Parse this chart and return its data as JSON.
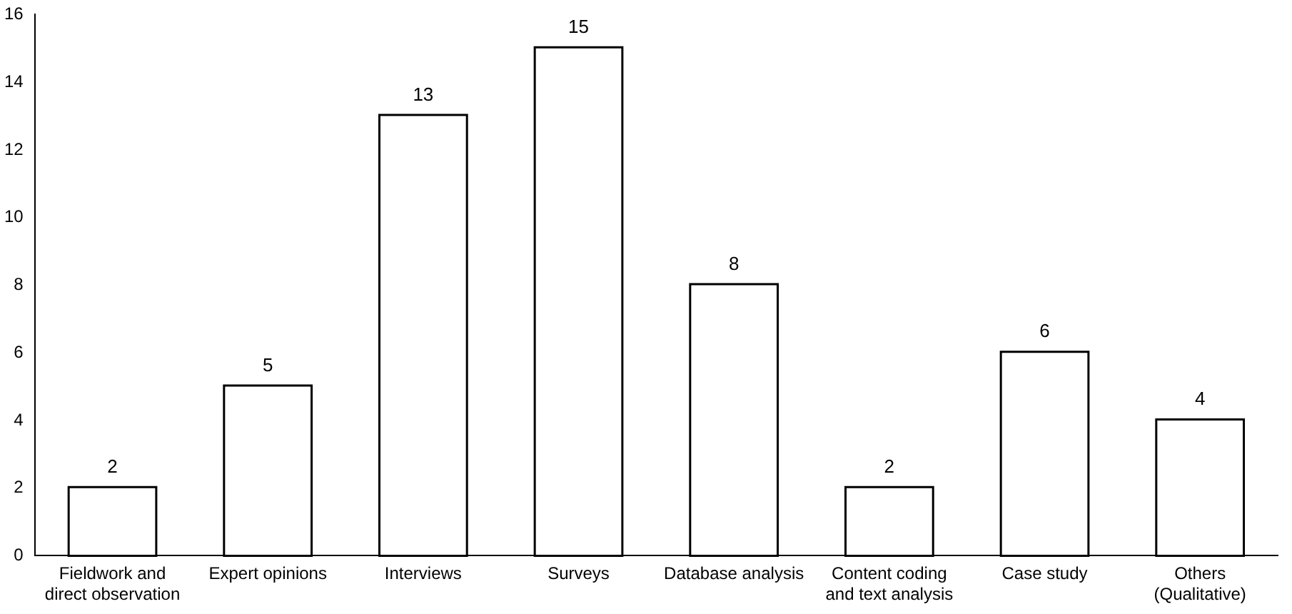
{
  "chart_data": {
    "type": "bar",
    "categories": [
      "Fieldwork and direct observation",
      "Expert opinions",
      "Interviews",
      "Surveys",
      "Database analysis",
      "Content coding and text analysis",
      "Case study",
      "Others (Qualitative)"
    ],
    "values": [
      2,
      5,
      13,
      15,
      8,
      2,
      6,
      4
    ],
    "color": "#ffffff",
    "ylim": [
      0,
      16
    ],
    "yticks": [
      0,
      2,
      4,
      6,
      8,
      10,
      12,
      14,
      16
    ],
    "grid": false,
    "legend": false,
    "data_labels": true
  }
}
